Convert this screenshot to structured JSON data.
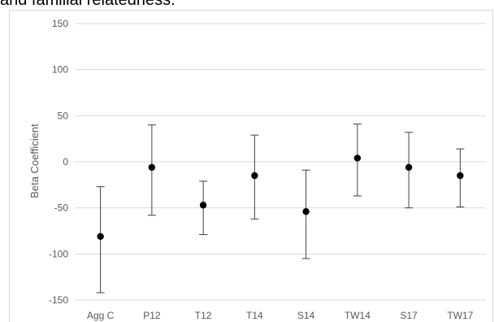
{
  "caption": "and familial relatedness.",
  "chart_data": {
    "type": "scatter",
    "title": "",
    "xlabel": "",
    "ylabel": "Beta Coefficient",
    "ylim": [
      -150,
      150
    ],
    "yticks": [
      150,
      100,
      50,
      0,
      -50,
      -100,
      -150
    ],
    "grid": "horizontal",
    "categories": [
      "Agg C",
      "P12",
      "T12",
      "T14",
      "S14",
      "TW14",
      "S17",
      "TW17"
    ],
    "values": [
      -81,
      -6,
      -47,
      -15,
      -54,
      4,
      -6,
      -15
    ],
    "error_upper": [
      -27,
      40,
      -21,
      29,
      -9,
      41,
      32,
      14
    ],
    "error_lower": [
      -142,
      -58,
      -79,
      -62,
      -105,
      -37,
      -50,
      -49
    ],
    "colors": {
      "point": "#000000",
      "error_bar": "#404040",
      "grid": "#d9d9d9",
      "tick_text": "#595959"
    }
  }
}
